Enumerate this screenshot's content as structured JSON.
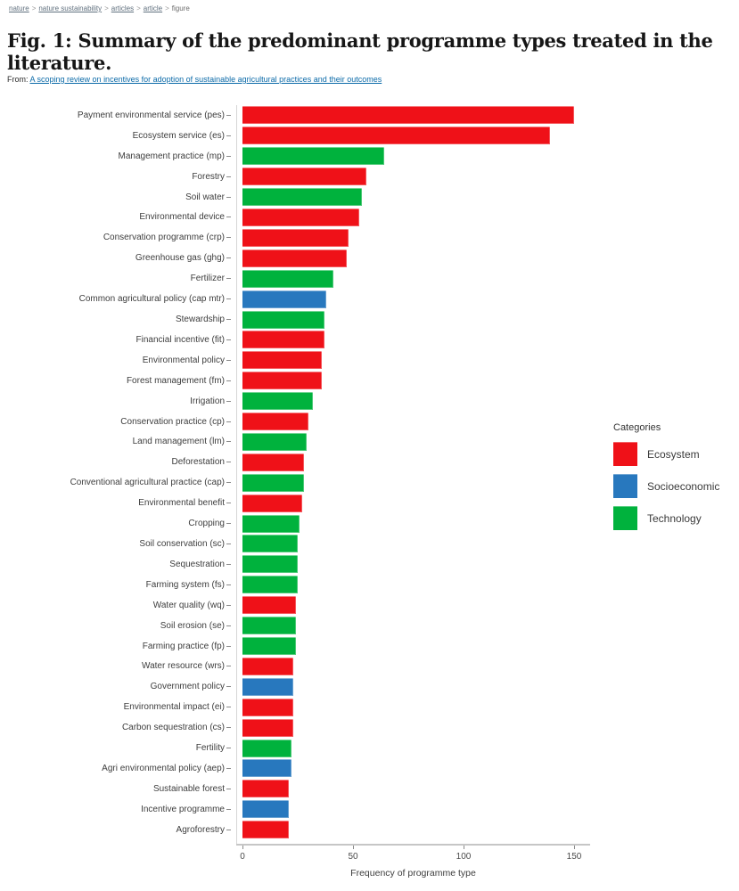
{
  "breadcrumb": {
    "separator": ">",
    "items": [
      {
        "label": "nature",
        "link": true
      },
      {
        "label": "nature sustainability",
        "link": true
      },
      {
        "label": "articles",
        "link": true
      },
      {
        "label": "article",
        "link": true
      },
      {
        "label": "figure",
        "link": false
      }
    ]
  },
  "figure": {
    "title": "Fig. 1: Summary of the predominant programme types treated in the literature.",
    "from_label": "From:",
    "source_link": "A scoping review on incentives for adoption of sustainable agricultural practices and their outcomes"
  },
  "chart_data": {
    "type": "bar",
    "orientation": "horizontal",
    "xlabel": "Frequency of programme type",
    "xticks": [
      0,
      50,
      100,
      150
    ],
    "xlim": [
      0,
      157
    ],
    "grid": false,
    "legend": {
      "title": "Categories",
      "position": "right",
      "entries": [
        {
          "label": "Ecosystem",
          "color": "#ef1118"
        },
        {
          "label": "Socioeconomic",
          "color": "#2878be"
        },
        {
          "label": "Technology",
          "color": "#00b23d"
        }
      ]
    },
    "category_colors": {
      "Ecosystem": "#ef1118",
      "Socioeconomic": "#2878be",
      "Technology": "#00b23d"
    },
    "bars": [
      {
        "label": "Payment environmental service (pes)",
        "value": 150,
        "category": "Ecosystem"
      },
      {
        "label": "Ecosystem service (es)",
        "value": 139,
        "category": "Ecosystem"
      },
      {
        "label": "Management practice (mp)",
        "value": 64,
        "category": "Technology"
      },
      {
        "label": "Forestry",
        "value": 56,
        "category": "Ecosystem"
      },
      {
        "label": "Soil water",
        "value": 54,
        "category": "Technology"
      },
      {
        "label": "Environmental device",
        "value": 53,
        "category": "Ecosystem"
      },
      {
        "label": "Conservation programme (crp)",
        "value": 48,
        "category": "Ecosystem"
      },
      {
        "label": "Greenhouse gas (ghg)",
        "value": 47,
        "category": "Ecosystem"
      },
      {
        "label": "Fertilizer",
        "value": 41,
        "category": "Technology"
      },
      {
        "label": "Common agricultural policy (cap mtr)",
        "value": 38,
        "category": "Socioeconomic"
      },
      {
        "label": "Stewardship",
        "value": 37,
        "category": "Technology"
      },
      {
        "label": "Financial incentive (fit)",
        "value": 37,
        "category": "Ecosystem"
      },
      {
        "label": "Environmental policy",
        "value": 36,
        "category": "Ecosystem"
      },
      {
        "label": "Forest management (fm)",
        "value": 36,
        "category": "Ecosystem"
      },
      {
        "label": "Irrigation",
        "value": 32,
        "category": "Technology"
      },
      {
        "label": "Conservation practice (cp)",
        "value": 30,
        "category": "Ecosystem"
      },
      {
        "label": "Land management (lm)",
        "value": 29,
        "category": "Technology"
      },
      {
        "label": "Deforestation",
        "value": 28,
        "category": "Ecosystem"
      },
      {
        "label": "Conventional agricultural practice (cap)",
        "value": 28,
        "category": "Technology"
      },
      {
        "label": "Environmental benefit",
        "value": 27,
        "category": "Ecosystem"
      },
      {
        "label": "Cropping",
        "value": 26,
        "category": "Technology"
      },
      {
        "label": "Soil conservation (sc)",
        "value": 25,
        "category": "Technology"
      },
      {
        "label": "Sequestration",
        "value": 25,
        "category": "Technology"
      },
      {
        "label": "Farming system (fs)",
        "value": 25,
        "category": "Technology"
      },
      {
        "label": "Water quality (wq)",
        "value": 24,
        "category": "Ecosystem"
      },
      {
        "label": "Soil erosion (se)",
        "value": 24,
        "category": "Technology"
      },
      {
        "label": "Farming practice (fp)",
        "value": 24,
        "category": "Technology"
      },
      {
        "label": "Water resource (wrs)",
        "value": 23,
        "category": "Ecosystem"
      },
      {
        "label": "Government policy",
        "value": 23,
        "category": "Socioeconomic"
      },
      {
        "label": "Environmental impact (ei)",
        "value": 23,
        "category": "Ecosystem"
      },
      {
        "label": "Carbon sequestration (cs)",
        "value": 23,
        "category": "Ecosystem"
      },
      {
        "label": "Fertility",
        "value": 22,
        "category": "Technology"
      },
      {
        "label": "Agri environmental policy (aep)",
        "value": 22,
        "category": "Socioeconomic"
      },
      {
        "label": "Sustainable forest",
        "value": 21,
        "category": "Ecosystem"
      },
      {
        "label": "Incentive programme",
        "value": 21,
        "category": "Socioeconomic"
      },
      {
        "label": "Agroforestry",
        "value": 21,
        "category": "Ecosystem"
      }
    ]
  }
}
